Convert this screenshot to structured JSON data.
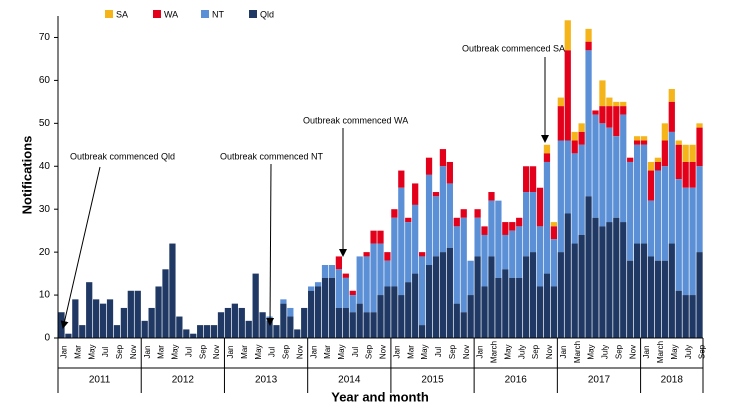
{
  "chart_data": {
    "type": "stacked-bar",
    "y_label": "Notifications",
    "x_label": "Year and month",
    "categories": [
      "Jan",
      null,
      "Mar",
      null,
      "May",
      null,
      "Jul",
      null,
      "Sep",
      null,
      "Nov",
      null,
      "Jan",
      null,
      "Mar",
      null,
      "May",
      null,
      "Jul",
      null,
      "Sep",
      null,
      "Nov",
      null,
      "Jan",
      null,
      "Mar",
      null,
      "May",
      null,
      "Jul",
      null,
      "Sep",
      null,
      "Nov",
      null,
      "Jan",
      null,
      "Mar",
      null,
      "May",
      null,
      "Jul",
      null,
      "Sep",
      null,
      "Nov",
      null,
      "Jan",
      null,
      "Mar",
      null,
      "May",
      null,
      "Jul",
      null,
      "Sep",
      null,
      "Nov",
      null,
      "Jan",
      null,
      "March",
      null,
      "May",
      null,
      "July",
      null,
      "Sep",
      null,
      "Nov",
      null,
      "Jan",
      null,
      "March",
      null,
      "May",
      null,
      "July",
      null,
      "Sep",
      null,
      "Nov",
      null,
      "Jan",
      null,
      "March",
      null,
      "May",
      null,
      "July",
      null,
      "Sep"
    ],
    "years": [
      "2011",
      "2012",
      "2013",
      "2014",
      "2015",
      "2016",
      "2017",
      "2018"
    ],
    "series": [
      {
        "name": "Qld",
        "color": "#1f3864",
        "values": [
          6,
          1,
          9,
          3,
          13,
          9,
          8,
          9,
          3,
          7,
          11,
          11,
          4,
          7,
          12,
          16,
          22,
          5,
          2,
          1,
          3,
          3,
          3,
          6,
          7,
          8,
          7,
          4,
          15,
          6,
          4,
          3,
          8,
          5,
          2,
          7,
          11,
          12,
          14,
          14,
          7,
          7,
          6,
          8,
          6,
          6,
          10,
          12,
          12,
          10,
          13,
          15,
          3,
          17,
          19,
          20,
          21,
          8,
          6,
          10,
          19,
          12,
          19,
          14,
          16,
          14,
          14,
          19,
          20,
          12,
          15,
          12,
          20,
          29,
          22,
          24,
          33,
          28,
          26,
          27,
          28,
          27,
          18,
          22,
          22,
          19,
          18,
          18,
          22,
          11,
          10,
          10,
          20
        ]
      },
      {
        "name": "NT",
        "color": "#5b8fd6",
        "values": [
          0,
          0,
          0,
          0,
          0,
          0,
          0,
          0,
          0,
          0,
          0,
          0,
          0,
          0,
          0,
          0,
          0,
          0,
          0,
          0,
          0,
          0,
          0,
          0,
          0,
          0,
          0,
          0,
          0,
          0,
          1,
          0,
          1,
          2,
          0,
          0,
          1,
          1,
          3,
          3,
          9,
          7,
          4,
          11,
          13,
          16,
          12,
          6,
          16,
          25,
          14,
          16,
          16,
          21,
          14,
          20,
          15,
          18,
          22,
          8,
          9,
          12,
          13,
          18,
          8,
          11,
          12,
          15,
          14,
          14,
          26,
          11,
          26,
          17,
          21,
          21,
          34,
          24,
          24,
          22,
          19,
          25,
          23,
          23,
          23,
          13,
          21,
          22,
          26,
          26,
          25,
          25,
          20
        ]
      },
      {
        "name": "WA",
        "color": "#e3001b",
        "values": [
          0,
          0,
          0,
          0,
          0,
          0,
          0,
          0,
          0,
          0,
          0,
          0,
          0,
          0,
          0,
          0,
          0,
          0,
          0,
          0,
          0,
          0,
          0,
          0,
          0,
          0,
          0,
          0,
          0,
          0,
          0,
          0,
          0,
          0,
          0,
          0,
          0,
          0,
          0,
          0,
          3,
          1,
          1,
          0,
          1,
          3,
          3,
          2,
          2,
          4,
          1,
          5,
          1,
          4,
          1,
          4,
          5,
          2,
          2,
          0,
          2,
          2,
          2,
          0,
          3,
          2,
          2,
          6,
          6,
          9,
          2,
          3,
          8,
          21,
          3,
          3,
          2,
          1,
          4,
          5,
          7,
          2,
          1,
          1,
          1,
          7,
          2,
          6,
          7,
          8,
          6,
          6,
          9
        ]
      },
      {
        "name": "SA",
        "color": "#f4b41a",
        "values": [
          0,
          0,
          0,
          0,
          0,
          0,
          0,
          0,
          0,
          0,
          0,
          0,
          0,
          0,
          0,
          0,
          0,
          0,
          0,
          0,
          0,
          0,
          0,
          0,
          0,
          0,
          0,
          0,
          0,
          0,
          0,
          0,
          0,
          0,
          0,
          0,
          0,
          0,
          0,
          0,
          0,
          0,
          0,
          0,
          0,
          0,
          0,
          0,
          0,
          0,
          0,
          0,
          0,
          0,
          0,
          0,
          0,
          0,
          0,
          0,
          0,
          0,
          0,
          0,
          0,
          0,
          0,
          0,
          0,
          0,
          2,
          1,
          2,
          7,
          2,
          2,
          3,
          0,
          6,
          2,
          1,
          1,
          0,
          1,
          1,
          2,
          1,
          4,
          3,
          1,
          4,
          4,
          1
        ]
      }
    ],
    "ylim": [
      0,
      75
    ],
    "yticks": [
      0,
      10,
      20,
      30,
      40,
      50,
      60,
      70
    ],
    "annotations": [
      "Outbreak commenced Qld",
      "Outbreak commenced NT",
      "Outbreak commenced WA",
      "Outbreak commenced SA"
    ]
  }
}
